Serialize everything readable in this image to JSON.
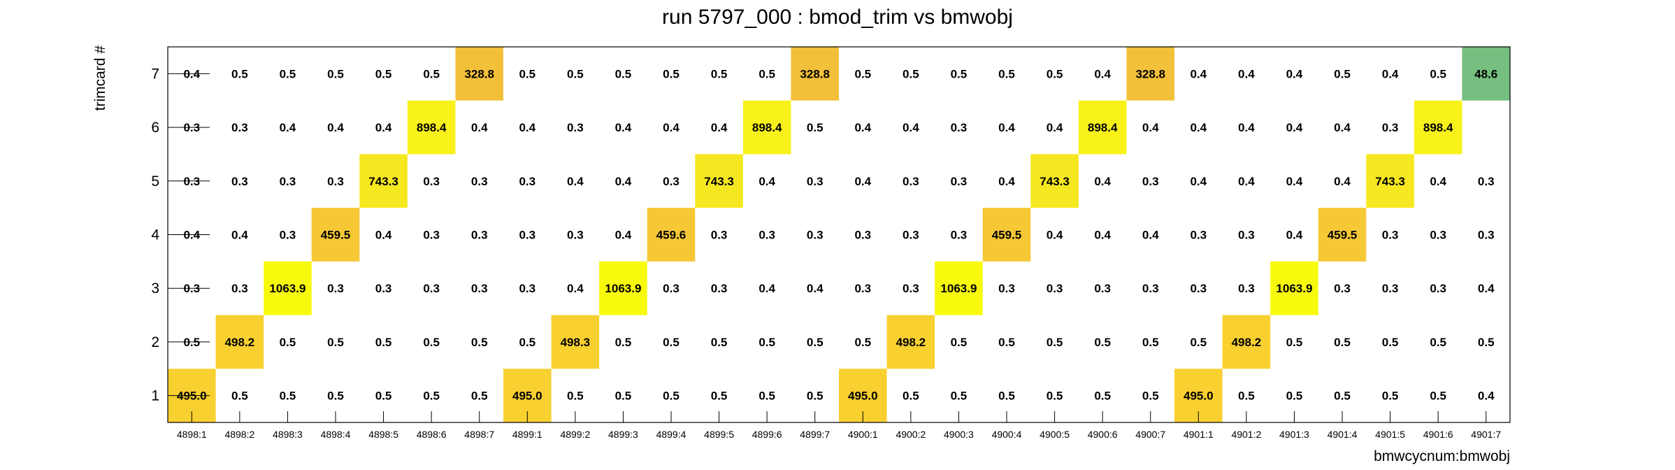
{
  "chart_data": {
    "type": "heatmap",
    "title": "run 5797_000 : bmod_trim vs bmwobj",
    "xlabel": "bmwcycnum:bmwobj",
    "ylabel": "trimcard #",
    "categories": [
      "4898:1",
      "4898:2",
      "4898:3",
      "4898:4",
      "4898:5",
      "4898:6",
      "4898:7",
      "4899:1",
      "4899:2",
      "4899:3",
      "4899:4",
      "4899:5",
      "4899:6",
      "4899:7",
      "4900:1",
      "4900:2",
      "4900:3",
      "4900:4",
      "4900:5",
      "4900:6",
      "4900:7",
      "4901:1",
      "4901:2",
      "4901:3",
      "4901:4",
      "4901:5",
      "4901:6",
      "4901:7"
    ],
    "y_categories": [
      "1",
      "2",
      "3",
      "4",
      "5",
      "6",
      "7"
    ],
    "values": [
      [
        "495.0",
        "0.5",
        "0.5",
        "0.5",
        "0.5",
        "0.5",
        "0.5",
        "495.0",
        "0.5",
        "0.5",
        "0.5",
        "0.5",
        "0.5",
        "0.5",
        "495.0",
        "0.5",
        "0.5",
        "0.5",
        "0.5",
        "0.5",
        "0.5",
        "495.0",
        "0.5",
        "0.5",
        "0.5",
        "0.5",
        "0.5",
        "0.4"
      ],
      [
        "0.5",
        "498.2",
        "0.5",
        "0.5",
        "0.5",
        "0.5",
        "0.5",
        "0.5",
        "498.3",
        "0.5",
        "0.5",
        "0.5",
        "0.5",
        "0.5",
        "0.5",
        "498.2",
        "0.5",
        "0.5",
        "0.5",
        "0.5",
        "0.5",
        "0.5",
        "498.2",
        "0.5",
        "0.5",
        "0.5",
        "0.5",
        "0.5"
      ],
      [
        "0.3",
        "0.3",
        "1063.9",
        "0.3",
        "0.3",
        "0.3",
        "0.3",
        "0.3",
        "0.4",
        "1063.9",
        "0.3",
        "0.3",
        "0.4",
        "0.4",
        "0.3",
        "0.3",
        "1063.9",
        "0.3",
        "0.3",
        "0.3",
        "0.3",
        "0.3",
        "0.3",
        "1063.9",
        "0.3",
        "0.3",
        "0.3",
        "0.4"
      ],
      [
        "0.4",
        "0.4",
        "0.3",
        "459.5",
        "0.4",
        "0.3",
        "0.3",
        "0.3",
        "0.3",
        "0.4",
        "459.6",
        "0.3",
        "0.3",
        "0.3",
        "0.3",
        "0.3",
        "0.3",
        "459.5",
        "0.4",
        "0.4",
        "0.4",
        "0.3",
        "0.3",
        "0.4",
        "459.5",
        "0.3",
        "0.3",
        "0.3"
      ],
      [
        "0.3",
        "0.3",
        "0.3",
        "0.3",
        "743.3",
        "0.3",
        "0.3",
        "0.3",
        "0.4",
        "0.4",
        "0.3",
        "743.3",
        "0.4",
        "0.3",
        "0.4",
        "0.3",
        "0.3",
        "0.4",
        "743.3",
        "0.4",
        "0.3",
        "0.4",
        "0.4",
        "0.4",
        "0.4",
        "743.3",
        "0.4",
        "0.3"
      ],
      [
        "0.3",
        "0.3",
        "0.4",
        "0.4",
        "0.4",
        "898.4",
        "0.4",
        "0.4",
        "0.3",
        "0.4",
        "0.4",
        "0.4",
        "898.4",
        "0.5",
        "0.4",
        "0.4",
        "0.3",
        "0.4",
        "0.4",
        "898.4",
        "0.4",
        "0.4",
        "0.4",
        "0.4",
        "0.4",
        "0.3",
        "898.4",
        ""
      ],
      [
        "0.4",
        "0.5",
        "0.5",
        "0.5",
        "0.5",
        "0.5",
        "328.8",
        "0.5",
        "0.5",
        "0.5",
        "0.5",
        "0.5",
        "0.5",
        "328.8",
        "0.5",
        "0.5",
        "0.5",
        "0.5",
        "0.5",
        "0.4",
        "328.8",
        "0.4",
        "0.4",
        "0.4",
        "0.5",
        "0.4",
        "0.5",
        "48.6"
      ]
    ],
    "cell_colors": {
      "1063.9": "#f8fa0e",
      "898.4": "#f8f21a",
      "743.3": "#f6e820",
      "498.2": "#f8d030",
      "498.3": "#f8d030",
      "495.0": "#f8d030",
      "459.5": "#f6c836",
      "459.6": "#f6c836",
      "328.8": "#f3c03a",
      "48.6": "#76bf80"
    },
    "colors": {
      "frame": "#000000",
      "background": "#ffffff"
    },
    "grid": false,
    "legend": "none"
  }
}
